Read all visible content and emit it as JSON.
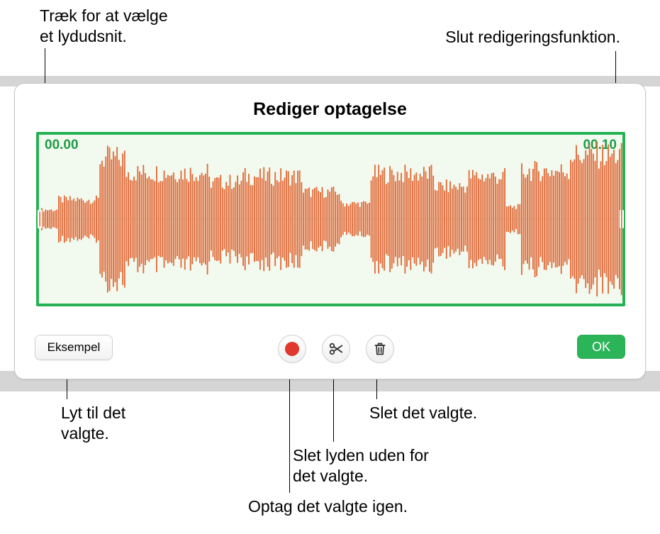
{
  "callouts": {
    "drag_l1": "Træk for at vælge",
    "drag_l2": "et lydudsnit.",
    "end_edit": "Slut redigeringsfunktion.",
    "listen_l1": "Lyt til det",
    "listen_l2": "valgte.",
    "rerecord": "Optag det valgte igen.",
    "trim_l1": "Slet lyden uden for",
    "trim_l2": "det valgte.",
    "delete": "Slet det valgte."
  },
  "panel": {
    "title": "Rediger optagelse",
    "time_start": "00.00",
    "time_end": "00.10",
    "preview_label": "Eksempel",
    "ok_label": "OK"
  },
  "colors": {
    "accent_green": "#25b254",
    "ok_green": "#2cb459",
    "wave_red": "#e06b3a",
    "record_red": "#e0372f",
    "bg_tint": "#f2faef",
    "band_gray": "#d5d5d5"
  },
  "waveform": {
    "samples": 310,
    "base_amp": 0.55,
    "segments": [
      {
        "from": 0,
        "to": 10,
        "amp": 0.12
      },
      {
        "from": 10,
        "to": 32,
        "amp": 0.25
      },
      {
        "from": 32,
        "to": 46,
        "amp": 0.78
      },
      {
        "from": 46,
        "to": 90,
        "amp": 0.6
      },
      {
        "from": 90,
        "to": 108,
        "amp": 0.48
      },
      {
        "from": 108,
        "to": 140,
        "amp": 0.55
      },
      {
        "from": 140,
        "to": 160,
        "amp": 0.35
      },
      {
        "from": 160,
        "to": 176,
        "amp": 0.2
      },
      {
        "from": 176,
        "to": 210,
        "amp": 0.58
      },
      {
        "from": 210,
        "to": 228,
        "amp": 0.42
      },
      {
        "from": 228,
        "to": 248,
        "amp": 0.55
      },
      {
        "from": 248,
        "to": 256,
        "amp": 0.16
      },
      {
        "from": 256,
        "to": 282,
        "amp": 0.62
      },
      {
        "from": 282,
        "to": 310,
        "amp": 0.82
      }
    ],
    "jitter": 0.22
  }
}
